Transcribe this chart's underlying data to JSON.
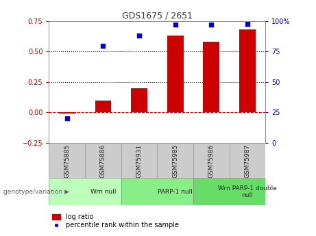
{
  "title": "GDS1675 / 2651",
  "categories": [
    "GSM75885",
    "GSM75886",
    "GSM75931",
    "GSM75985",
    "GSM75986",
    "GSM75987"
  ],
  "log_ratio": [
    -0.01,
    0.1,
    0.2,
    0.63,
    0.58,
    0.68
  ],
  "percentile_rank": [
    20,
    80,
    88,
    97,
    97,
    98
  ],
  "bar_color": "#cc0000",
  "dot_color": "#0000cc",
  "left_ylim": [
    -0.25,
    0.75
  ],
  "right_ylim": [
    0,
    100
  ],
  "left_yticks": [
    -0.25,
    0.0,
    0.25,
    0.5,
    0.75
  ],
  "right_yticks": [
    0,
    25,
    50,
    75,
    100
  ],
  "right_yticklabels": [
    "0",
    "25",
    "50",
    "75",
    "100%"
  ],
  "hlines": [
    0.0,
    0.25,
    0.5
  ],
  "hline_styles": [
    "dashed",
    "dotted",
    "dotted"
  ],
  "hline_colors": [
    "#cc0000",
    "#000000",
    "#000000"
  ],
  "groups": [
    {
      "label": "Wrn null",
      "start": 0,
      "end": 2,
      "color": "#bbffbb"
    },
    {
      "label": "PARP-1 null",
      "start": 2,
      "end": 4,
      "color": "#88ee88"
    },
    {
      "label": "Wrn PARP-1 double\nnull",
      "start": 4,
      "end": 6,
      "color": "#66dd66"
    }
  ],
  "legend_bar_label": "log ratio",
  "legend_dot_label": "percentile rank within the sample",
  "xlabel_group": "genotype/variation",
  "background_color": "#ffffff",
  "plot_bg_color": "#ffffff",
  "tick_label_color_left": "#cc0000",
  "tick_label_color_right": "#0000cc",
  "bar_width": 0.45,
  "label_box_color": "#cccccc",
  "label_box_edge": "#999999"
}
